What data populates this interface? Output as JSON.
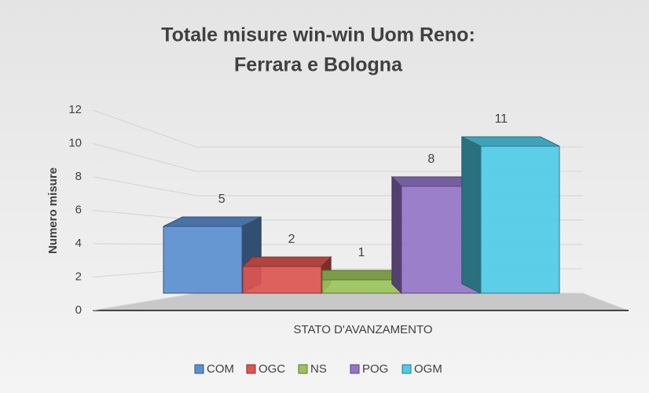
{
  "chart_data": {
    "type": "bar3d",
    "title": [
      "Totale misure win-win Uom Reno:",
      "Ferrara e Bologna"
    ],
    "y_label": "Numero misure",
    "categories": [
      "STATO D'AVANZAMENTO"
    ],
    "series": [
      {
        "name": "COM",
        "color": "#5b8fd0",
        "values": [
          5
        ]
      },
      {
        "name": "OGC",
        "color": "#dc5550",
        "values": [
          2
        ]
      },
      {
        "name": "NS",
        "color": "#9bc35a",
        "values": [
          1
        ]
      },
      {
        "name": "POG",
        "color": "#9575c8",
        "values": [
          8
        ]
      },
      {
        "name": "OGM",
        "color": "#4fcbe6",
        "values": [
          11
        ]
      }
    ],
    "ylim": [
      0,
      12
    ],
    "yticks": [
      0,
      2,
      4,
      6,
      8,
      10,
      12
    ],
    "grid": true,
    "legend": "bottom"
  }
}
